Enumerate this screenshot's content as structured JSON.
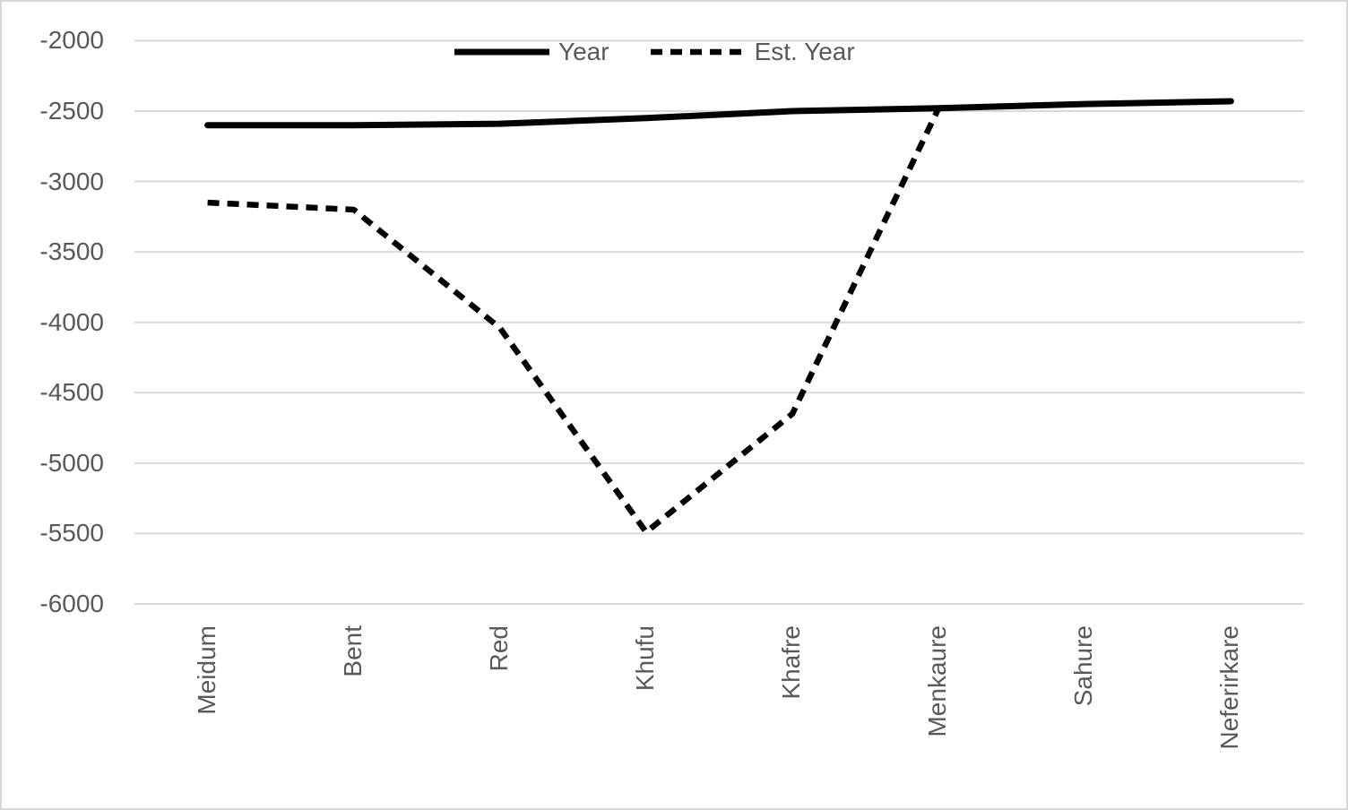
{
  "chart_data": {
    "type": "line",
    "categories": [
      "Meidum",
      "Bent",
      "Red",
      "Khufu",
      "Khafre",
      "Menkaure",
      "Sahure",
      "Neferirkare"
    ],
    "series": [
      {
        "name": "Year",
        "style": "solid",
        "values": [
          -2600,
          -2600,
          -2590,
          -2550,
          -2500,
          -2480,
          -2450,
          -2430
        ]
      },
      {
        "name": "Est. Year",
        "style": "dashed",
        "values": [
          -3150,
          -3200,
          -4040,
          -5490,
          -4650,
          -2480,
          null,
          null
        ]
      }
    ],
    "title": "",
    "xlabel": "",
    "ylabel": "",
    "ylim": [
      -6000,
      -2000
    ],
    "yticks": [
      -2000,
      -2500,
      -3000,
      -3500,
      -4000,
      -4500,
      -5000,
      -5500,
      -6000
    ],
    "grid": true,
    "legend_position": "top-center",
    "colors": {
      "series_line": "#000000",
      "axis_text": "#595959",
      "gridline": "#d9d9d9",
      "frame_border": "#d6d6d6",
      "background": "#ffffff"
    }
  }
}
